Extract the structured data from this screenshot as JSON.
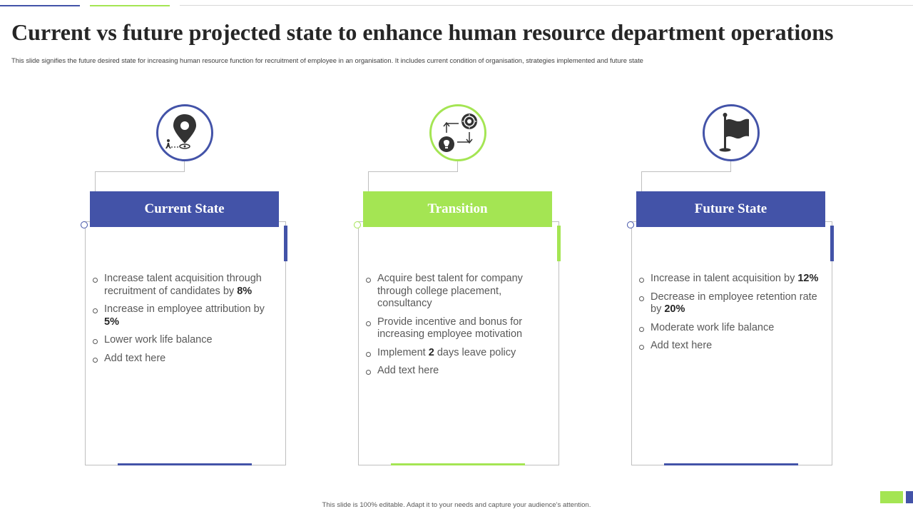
{
  "slide": {
    "title": "Current vs future projected state to enhance human resource department operations",
    "subtitle": "This slide signifies the future desired state for increasing human resource function for recruitment of employee in an organisation. It includes current condition of organisation, strategies implemented  and future state",
    "footer": "This slide is 100% editable. Adapt it to your needs and capture your audience’s attention."
  },
  "colors": {
    "blue": "#4353a8",
    "green": "#a4e553"
  },
  "columns": [
    {
      "heading": "Current State",
      "icon": "location-pin-person-icon",
      "bullets": [
        {
          "text": "Increase talent acquisition through recruitment of candidates by ",
          "bold": "8%"
        },
        {
          "text": "Increase in employee attribution by ",
          "bold": "5%"
        },
        {
          "text": "Lower work  life balance",
          "bold": ""
        },
        {
          "text": "Add text here",
          "bold": ""
        }
      ]
    },
    {
      "heading": "Transition",
      "icon": "idea-gear-cycle-icon",
      "bullets": [
        {
          "text": "Acquire best talent for company through college placement, consultancy",
          "bold": ""
        },
        {
          "text": "Provide incentive and bonus for increasing employee motivation",
          "bold": ""
        },
        {
          "pre": "Implement ",
          "bold": "2",
          "post": " days leave policy"
        },
        {
          "text": "Add text here",
          "bold": ""
        }
      ]
    },
    {
      "heading": "Future State",
      "icon": "flag-icon",
      "bullets": [
        {
          "text": "Increase in talent acquisition by ",
          "bold": "12%"
        },
        {
          "text": "Decrease in employee retention rate by ",
          "bold": "20%"
        },
        {
          "text": "Moderate work life balance",
          "bold": ""
        },
        {
          "text": "Add text here",
          "bold": ""
        }
      ]
    }
  ]
}
